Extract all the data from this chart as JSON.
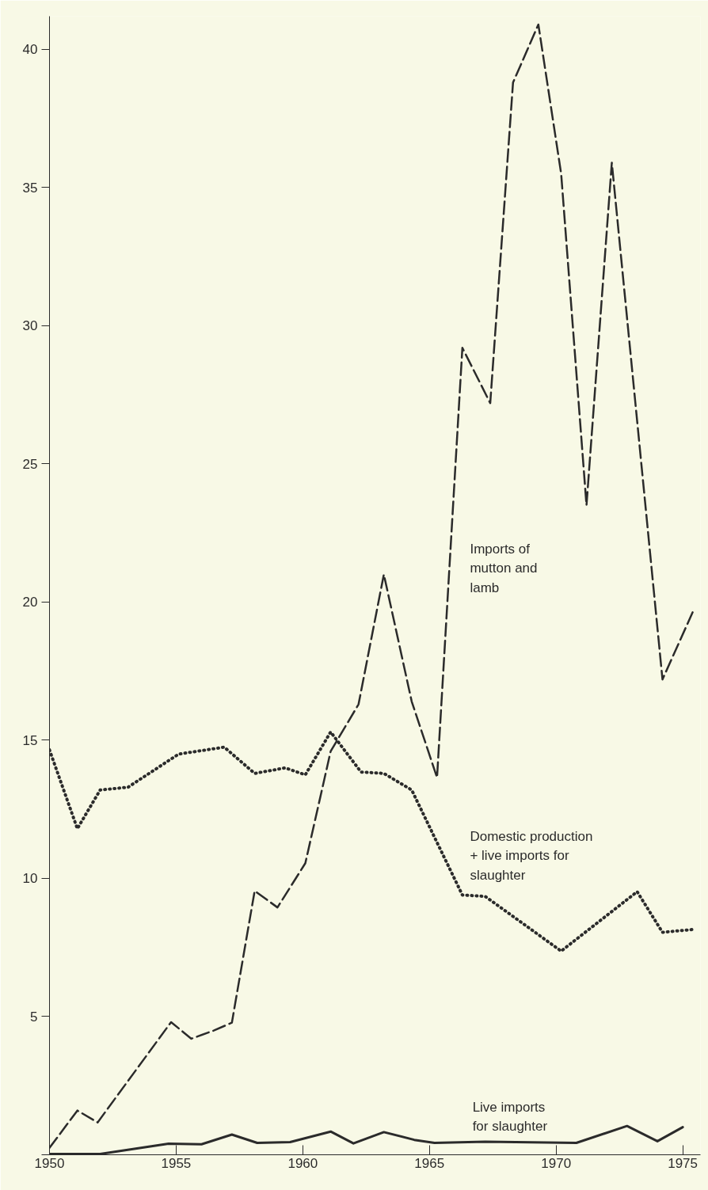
{
  "chart_data": {
    "type": "line",
    "xlim": [
      1950,
      1975.7
    ],
    "xticks": [
      1950,
      1955,
      1960,
      1965,
      1970,
      1975
    ],
    "ylim": [
      0,
      41.2
    ],
    "yticks": [
      {
        "value": 0,
        "label": null
      },
      5,
      10,
      15,
      20,
      25,
      30,
      35,
      40
    ],
    "grid": false,
    "marker": "none",
    "series": [
      {
        "name": "Imports of\nmutton and\nlamb",
        "color": "#2b2b2b",
        "line_style": "dashed",
        "x": [
          1950,
          1951.1,
          1951.9,
          1954.8,
          1955.6,
          1956.5,
          1957.2,
          1958.1,
          1959,
          1960.1,
          1961.1,
          1962.2,
          1963.2,
          1964.3,
          1965.3,
          1966.3,
          1967.4,
          1968.3,
          1969.3,
          1970.2,
          1971.2,
          1972.2,
          1974.2,
          1975.4
        ],
        "values": [
          0.25,
          1.6,
          1.17,
          4.8,
          4.2,
          4.5,
          4.78,
          9.55,
          8.95,
          10.55,
          14.6,
          16.3,
          21.0,
          16.4,
          13.65,
          29.2,
          27.2,
          38.8,
          40.9,
          35.5,
          23.5,
          35.9,
          17.2,
          19.65
        ]
      },
      {
        "name": "Domestic production\n+ live imports for\nslaughter",
        "color": "#2b2b2b",
        "line_style": "dotted",
        "x": [
          1950,
          1951.1,
          1952,
          1953.1,
          1955.1,
          1956.9,
          1958.1,
          1959.3,
          1960.1,
          1961.1,
          1962.3,
          1963.2,
          1964.3,
          1966.3,
          1967.2,
          1970.2,
          1973.2,
          1974.2,
          1975.5
        ],
        "values": [
          14.65,
          11.8,
          13.2,
          13.3,
          14.5,
          14.75,
          13.8,
          14.0,
          13.75,
          15.3,
          13.85,
          13.8,
          13.2,
          9.4,
          9.35,
          7.37,
          9.52,
          8.05,
          8.16
        ]
      },
      {
        "name": "Live imports\nfor slaughter",
        "color": "#2b2b2b",
        "line_style": "solid",
        "x": [
          1950,
          1952,
          1954.7,
          1956,
          1957.2,
          1958.2,
          1959.5,
          1961.1,
          1962,
          1963.2,
          1964.4,
          1965.2,
          1967.2,
          1970.8,
          1972.8,
          1974,
          1975
        ],
        "values": [
          0.03,
          0.03,
          0.4,
          0.38,
          0.73,
          0.43,
          0.46,
          0.84,
          0.41,
          0.82,
          0.54,
          0.43,
          0.47,
          0.43,
          1.04,
          0.49,
          1.0
        ]
      }
    ]
  }
}
